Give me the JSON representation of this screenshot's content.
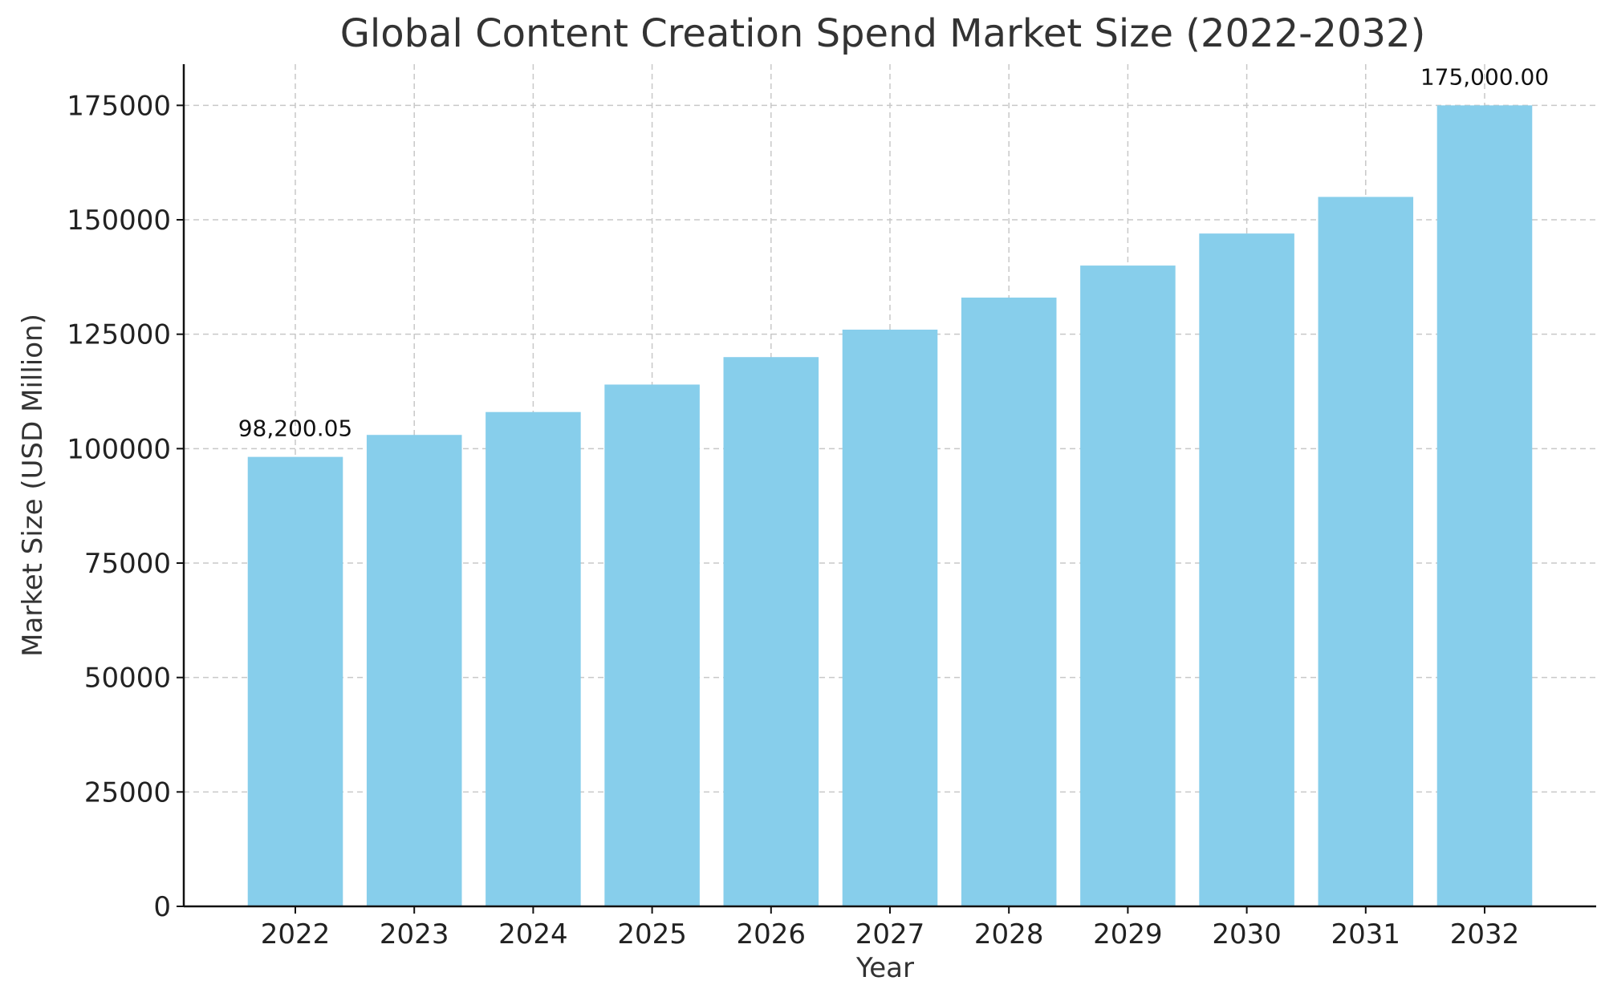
{
  "chart_data": {
    "type": "bar",
    "title": "Global Content Creation Spend Market Size (2022-2032)",
    "xlabel": "Year",
    "ylabel": "Market Size (USD Million)",
    "categories": [
      "2022",
      "2023",
      "2024",
      "2025",
      "2026",
      "2027",
      "2028",
      "2029",
      "2030",
      "2031",
      "2032"
    ],
    "values": [
      98200.05,
      103000,
      108000,
      114000,
      120000,
      126000,
      133000,
      140000,
      147000,
      155000,
      175000
    ],
    "ylim": [
      0,
      184000
    ],
    "yticks": [
      0,
      25000,
      50000,
      75000,
      100000,
      125000,
      150000,
      175000
    ],
    "data_labels": [
      {
        "category": "2022",
        "text": "98,200.05"
      },
      {
        "category": "2032",
        "text": "175,000.00"
      }
    ],
    "grid": true,
    "bar_color": "#87CEEB"
  }
}
